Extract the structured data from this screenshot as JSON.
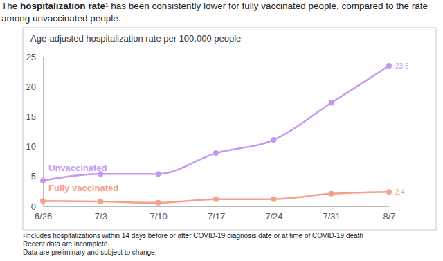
{
  "chart_data": {
    "type": "line",
    "title": [
      {
        "text": "The "
      },
      {
        "text": "hospitalization rate",
        "style": "bold"
      },
      {
        "text": "¹"
      },
      {
        "text": " has been consistently lower for fully vaccinated people, compared to the rate among unvaccinated people."
      }
    ],
    "ylabel": "Age-adjusted hospitalization rate per 100,000 people",
    "x": [
      "6/26",
      "7/3",
      "7/10",
      "7/17",
      "7/24",
      "7/31",
      "8/7"
    ],
    "series": [
      {
        "name": "Unvaccinated",
        "color": "#c597f3",
        "marker": "circle",
        "line_style": "solid",
        "values": [
          4.3,
          5.4,
          5.4,
          8.9,
          11.1,
          17.3,
          23.5
        ],
        "value_labels": [
          null,
          null,
          null,
          null,
          null,
          null,
          "23.5"
        ]
      },
      {
        "name": "Fully vaccinated",
        "color": "#f5a08b",
        "marker": "circle",
        "line_style": "solid",
        "values": [
          0.9,
          0.8,
          0.6,
          1.2,
          1.2,
          2.1,
          2.4
        ],
        "value_labels": [
          null,
          null,
          null,
          null,
          null,
          null,
          "2.4"
        ]
      }
    ],
    "ylim": [
      0,
      25
    ],
    "yticks": [
      0,
      5,
      10,
      15,
      20,
      25
    ],
    "grid": false,
    "legend": "inline",
    "annotations": [
      "¹Includes hospitalizations within 14 days before or after COVID-19 diagnosis date or at time of COVID-19 death",
      "Recent data are incomplete.",
      "Data are preliminary and subject to change."
    ]
  }
}
